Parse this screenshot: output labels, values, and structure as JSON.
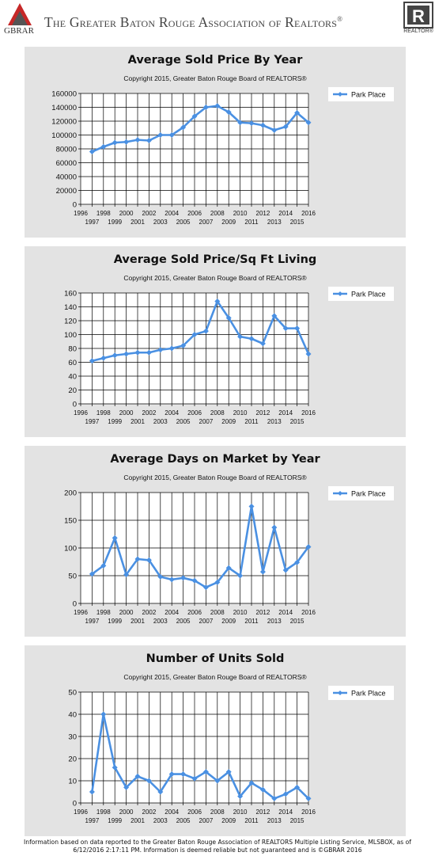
{
  "header": {
    "logo_text": "GBRAR",
    "title": "The Greater Baton Rouge Association of Realtors",
    "title_mark": "®",
    "realtor_logo_letter": "R",
    "realtor_text": "REALTOR®"
  },
  "colors": {
    "series": "#4a90e2",
    "panel": "#e3e3e3",
    "plot_bg": "#ffffff",
    "grid": "#000000"
  },
  "chart_data": [
    {
      "type": "line",
      "title": "Average Sold Price By Year",
      "subtitle": "Copyright 2015, Greater Baton Rouge Board of REALTORS®",
      "x": [
        1997,
        1998,
        1999,
        2000,
        2001,
        2002,
        2003,
        2004,
        2005,
        2006,
        2007,
        2008,
        2009,
        2010,
        2011,
        2012,
        2013,
        2014,
        2015,
        2016
      ],
      "series": [
        {
          "name": "Park Place",
          "values": [
            76000,
            83000,
            89000,
            90000,
            93000,
            92000,
            100000,
            100000,
            111000,
            127000,
            140000,
            142000,
            133000,
            118000,
            117000,
            114000,
            107000,
            112000,
            132000,
            118000
          ]
        }
      ],
      "xlim": [
        1996,
        2016
      ],
      "ylim": [
        0,
        160000
      ],
      "yticks": [
        0,
        20000,
        40000,
        60000,
        80000,
        100000,
        120000,
        140000,
        160000
      ],
      "xticks_top": [
        "1996",
        "1998",
        "2000",
        "2002",
        "2004",
        "2006",
        "2008",
        "2010",
        "2012",
        "2014",
        "2016"
      ],
      "xticks_bottom": [
        "1997",
        "1999",
        "2001",
        "2003",
        "2005",
        "2007",
        "2009",
        "2011",
        "2013",
        "2015"
      ],
      "grid": true,
      "legend": "top-right"
    },
    {
      "type": "line",
      "title": "Average Sold Price/Sq Ft Living",
      "subtitle": "Copyright 2015, Greater Baton Rouge Board of REALTORS®",
      "x": [
        1997,
        1998,
        1999,
        2000,
        2001,
        2002,
        2003,
        2004,
        2005,
        2006,
        2007,
        2008,
        2009,
        2010,
        2011,
        2012,
        2013,
        2014,
        2015,
        2016
      ],
      "series": [
        {
          "name": "Park Place",
          "values": [
            62,
            66,
            70,
            72,
            74,
            74,
            78,
            80,
            84,
            100,
            105,
            148,
            124,
            97,
            94,
            87,
            127,
            109,
            109,
            72
          ]
        }
      ],
      "xlim": [
        1996,
        2016
      ],
      "ylim": [
        0,
        160
      ],
      "yticks": [
        0,
        20,
        40,
        60,
        80,
        100,
        120,
        140,
        160
      ],
      "xticks_top": [
        "1996",
        "1998",
        "2000",
        "2002",
        "2004",
        "2006",
        "2008",
        "2010",
        "2012",
        "2014",
        "2016"
      ],
      "xticks_bottom": [
        "1997",
        "1999",
        "2001",
        "2003",
        "2005",
        "2007",
        "2009",
        "2011",
        "2013",
        "2015"
      ],
      "grid": true,
      "legend": "top-right"
    },
    {
      "type": "line",
      "title": "Average Days on Market by Year",
      "subtitle": "Copyright 2015, Greater Baton Rouge Board of REALTORS®",
      "x": [
        1997,
        1998,
        1999,
        2000,
        2001,
        2002,
        2003,
        2004,
        2005,
        2006,
        2007,
        2008,
        2009,
        2010,
        2011,
        2012,
        2013,
        2014,
        2015,
        2016
      ],
      "series": [
        {
          "name": "Park Place",
          "values": [
            53,
            68,
            118,
            52,
            80,
            78,
            48,
            43,
            46,
            41,
            29,
            38,
            64,
            50,
            175,
            57,
            137,
            60,
            74,
            102
          ]
        }
      ],
      "xlim": [
        1996,
        2016
      ],
      "ylim": [
        0,
        200
      ],
      "yticks": [
        0,
        50,
        100,
        150,
        200
      ],
      "xticks_top": [
        "1996",
        "1998",
        "2000",
        "2002",
        "2004",
        "2006",
        "2008",
        "2010",
        "2012",
        "2014",
        "2016"
      ],
      "xticks_bottom": [
        "1997",
        "1999",
        "2001",
        "2003",
        "2005",
        "2007",
        "2009",
        "2011",
        "2013",
        "2015"
      ],
      "grid": true,
      "legend": "top-right"
    },
    {
      "type": "line",
      "title": "Number of Units Sold",
      "subtitle": "Copyright 2015, Greater Baton Rouge Board of REALTORS®",
      "x": [
        1997,
        1998,
        1999,
        2000,
        2001,
        2002,
        2003,
        2004,
        2005,
        2006,
        2007,
        2008,
        2009,
        2010,
        2011,
        2012,
        2013,
        2014,
        2015,
        2016
      ],
      "series": [
        {
          "name": "Park Place",
          "values": [
            5,
            40,
            16,
            7,
            12,
            10,
            5,
            13,
            13,
            11,
            14,
            10,
            14,
            3,
            9,
            6,
            2,
            4,
            7,
            2
          ]
        }
      ],
      "xlim": [
        1996,
        2016
      ],
      "ylim": [
        0,
        50
      ],
      "yticks": [
        0,
        10,
        20,
        30,
        40,
        50
      ],
      "xticks_top": [
        "1996",
        "1998",
        "2000",
        "2002",
        "2004",
        "2006",
        "2008",
        "2010",
        "2012",
        "2014",
        "2016"
      ],
      "xticks_bottom": [
        "1997",
        "1999",
        "2001",
        "2003",
        "2005",
        "2007",
        "2009",
        "2011",
        "2013",
        "2015"
      ],
      "grid": true,
      "legend": "top-right"
    }
  ],
  "footer": {
    "line1": "Information based on data reported to the Greater Baton Rouge Association of REALTORS Multiple Listing Service, MLSBOX, as of",
    "line2": "6/12/2016 2:17:11 PM. Information is deemed reliable but not guaranteed and is ©GBRAR 2016"
  }
}
